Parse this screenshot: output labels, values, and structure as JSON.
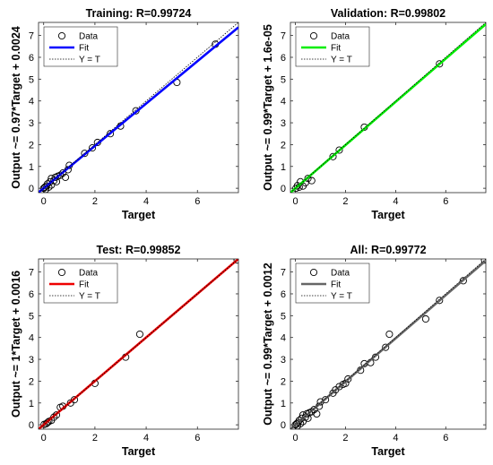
{
  "colors": {
    "training_fit": "#0000ff",
    "validation_fit": "#00ee00",
    "test_fit": "#ee0000",
    "all_fit": "#666666",
    "data_marker": "#000000",
    "identity_line": "#000000"
  },
  "chart_data": [
    {
      "type": "scatter",
      "title": "Training: R=0.99724",
      "xlabel": "Target",
      "ylabel": "Output ~= 0.97*Target + 0.0024",
      "xlim": [
        -0.2,
        7.6
      ],
      "ylim": [
        -0.2,
        7.6
      ],
      "xticks": [
        0,
        2,
        4,
        6
      ],
      "yticks": [
        0,
        1,
        2,
        3,
        4,
        5,
        6,
        7
      ],
      "grid": false,
      "legend": {
        "position": "top-left",
        "entries": [
          "Data",
          "Fit",
          "Y = T"
        ]
      },
      "fit": {
        "slope": 0.97,
        "intercept": 0.0024
      },
      "series": [
        {
          "name": "Data",
          "points": [
            [
              0,
              0
            ],
            [
              0.05,
              0.05
            ],
            [
              0.08,
              -0.05
            ],
            [
              0.1,
              0.1
            ],
            [
              0.15,
              0.2
            ],
            [
              0.2,
              0.05
            ],
            [
              0.25,
              0.3
            ],
            [
              0.3,
              0.15
            ],
            [
              0.3,
              0.45
            ],
            [
              0.4,
              0.35
            ],
            [
              0.45,
              0.5
            ],
            [
              0.5,
              0.3
            ],
            [
              0.55,
              0.55
            ],
            [
              0.65,
              0.6
            ],
            [
              0.75,
              0.7
            ],
            [
              0.85,
              0.5
            ],
            [
              0.95,
              0.85
            ],
            [
              1.0,
              1.05
            ],
            [
              1.6,
              1.6
            ],
            [
              1.9,
              1.85
            ],
            [
              2.1,
              2.1
            ],
            [
              2.6,
              2.5
            ],
            [
              3.0,
              2.85
            ],
            [
              3.6,
              3.55
            ],
            [
              5.2,
              4.85
            ],
            [
              6.7,
              6.6
            ]
          ]
        }
      ]
    },
    {
      "type": "scatter",
      "title": "Validation: R=0.99802",
      "xlabel": "Target",
      "ylabel": "Output ~= 0.99*Target + 1.6e-05",
      "xlim": [
        -0.2,
        7.6
      ],
      "ylim": [
        -0.2,
        7.6
      ],
      "xticks": [
        0,
        2,
        4,
        6
      ],
      "yticks": [
        0,
        1,
        2,
        3,
        4,
        5,
        6,
        7
      ],
      "grid": false,
      "legend": {
        "position": "top-left",
        "entries": [
          "Data",
          "Fit",
          "Y = T"
        ]
      },
      "fit": {
        "slope": 0.99,
        "intercept": 1.6e-05
      },
      "series": [
        {
          "name": "Data",
          "points": [
            [
              0.02,
              0.0
            ],
            [
              0.08,
              0.12
            ],
            [
              0.15,
              0.05
            ],
            [
              0.2,
              0.3
            ],
            [
              0.3,
              0.1
            ],
            [
              0.4,
              0.25
            ],
            [
              0.5,
              0.45
            ],
            [
              0.65,
              0.35
            ],
            [
              1.5,
              1.45
            ],
            [
              1.75,
              1.75
            ],
            [
              2.75,
              2.8
            ],
            [
              5.75,
              5.7
            ]
          ]
        }
      ]
    },
    {
      "type": "scatter",
      "title": "Test: R=0.99852",
      "xlabel": "Target",
      "ylabel": "Output ~= 1*Target + 0.0016",
      "xlim": [
        -0.2,
        7.6
      ],
      "ylim": [
        -0.2,
        7.6
      ],
      "xticks": [
        0,
        2,
        4,
        6
      ],
      "yticks": [
        0,
        1,
        2,
        3,
        4,
        5,
        6,
        7
      ],
      "grid": false,
      "legend": {
        "position": "top-left",
        "entries": [
          "Data",
          "Fit",
          "Y = T"
        ]
      },
      "fit": {
        "slope": 1.0,
        "intercept": 0.0016
      },
      "series": [
        {
          "name": "Data",
          "points": [
            [
              0.02,
              0.02
            ],
            [
              0.1,
              0.05
            ],
            [
              0.15,
              0.1
            ],
            [
              0.2,
              0.15
            ],
            [
              0.3,
              0.2
            ],
            [
              0.4,
              0.35
            ],
            [
              0.5,
              0.45
            ],
            [
              0.65,
              0.8
            ],
            [
              0.75,
              0.85
            ],
            [
              1.05,
              1.0
            ],
            [
              1.2,
              1.15
            ],
            [
              2.0,
              1.9
            ],
            [
              3.2,
              3.1
            ],
            [
              3.75,
              4.15
            ],
            [
              7.55,
              7.55
            ]
          ]
        }
      ]
    },
    {
      "type": "scatter",
      "title": "All: R=0.99772",
      "xlabel": "Target",
      "ylabel": "Output ~= 0.99*Target + 0.0012",
      "xlim": [
        -0.2,
        7.6
      ],
      "ylim": [
        -0.2,
        7.6
      ],
      "xticks": [
        0,
        2,
        4,
        6
      ],
      "yticks": [
        0,
        1,
        2,
        3,
        4,
        5,
        6,
        7
      ],
      "grid": false,
      "legend": {
        "position": "top-left",
        "entries": [
          "Data",
          "Fit",
          "Y = T"
        ]
      },
      "fit": {
        "slope": 0.99,
        "intercept": 0.0012
      },
      "series": [
        {
          "name": "Data",
          "points": [
            [
              0,
              0
            ],
            [
              0.05,
              0.05
            ],
            [
              0.08,
              -0.05
            ],
            [
              0.1,
              0.1
            ],
            [
              0.15,
              0.2
            ],
            [
              0.2,
              0.05
            ],
            [
              0.25,
              0.3
            ],
            [
              0.3,
              0.15
            ],
            [
              0.3,
              0.45
            ],
            [
              0.4,
              0.35
            ],
            [
              0.45,
              0.5
            ],
            [
              0.5,
              0.3
            ],
            [
              0.55,
              0.55
            ],
            [
              0.65,
              0.6
            ],
            [
              0.75,
              0.7
            ],
            [
              0.85,
              0.5
            ],
            [
              0.95,
              0.85
            ],
            [
              1.0,
              1.05
            ],
            [
              1.2,
              1.15
            ],
            [
              1.5,
              1.45
            ],
            [
              1.6,
              1.6
            ],
            [
              1.75,
              1.75
            ],
            [
              1.9,
              1.85
            ],
            [
              2.0,
              1.9
            ],
            [
              2.1,
              2.1
            ],
            [
              2.6,
              2.5
            ],
            [
              2.75,
              2.8
            ],
            [
              3.0,
              2.85
            ],
            [
              3.2,
              3.1
            ],
            [
              3.6,
              3.55
            ],
            [
              3.75,
              4.15
            ],
            [
              5.2,
              4.85
            ],
            [
              5.75,
              5.7
            ],
            [
              6.7,
              6.6
            ],
            [
              7.55,
              7.55
            ]
          ]
        }
      ]
    }
  ]
}
